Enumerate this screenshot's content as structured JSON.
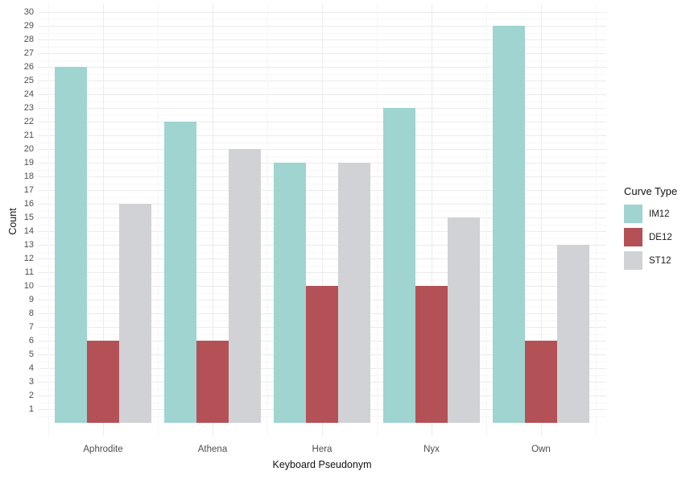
{
  "chart_data": {
    "type": "bar",
    "title": "",
    "categories": [
      "Aphrodite",
      "Athena",
      "Hera",
      "Nyx",
      "Own"
    ],
    "series": [
      {
        "name": "IM12",
        "color": "#9FD4D0",
        "values": [
          26,
          22,
          19,
          23,
          29
        ]
      },
      {
        "name": "DE12",
        "color": "#B45156",
        "values": [
          6,
          6,
          10,
          10,
          6
        ]
      },
      {
        "name": "ST12",
        "color": "#D0D2D5",
        "values": [
          16,
          20,
          19,
          15,
          13
        ]
      }
    ],
    "xlabel": "Keyboard Pseudonym",
    "ylabel": "Count",
    "ylim": [
      0,
      30
    ],
    "yticks": [
      1,
      2,
      3,
      4,
      5,
      6,
      7,
      8,
      9,
      10,
      11,
      12,
      13,
      14,
      15,
      16,
      17,
      18,
      19,
      20,
      21,
      22,
      23,
      24,
      25,
      26,
      27,
      28,
      29,
      30
    ],
    "legend_title": "Curve Type",
    "legend_position": "right",
    "grid": "on",
    "colors": {
      "background": "#FFFFFF",
      "gridline_major": "#EBEBEB",
      "gridline_minor": "#F6F6F6",
      "axis_text": "#4D4D4D",
      "axis_title": "#111111"
    }
  }
}
